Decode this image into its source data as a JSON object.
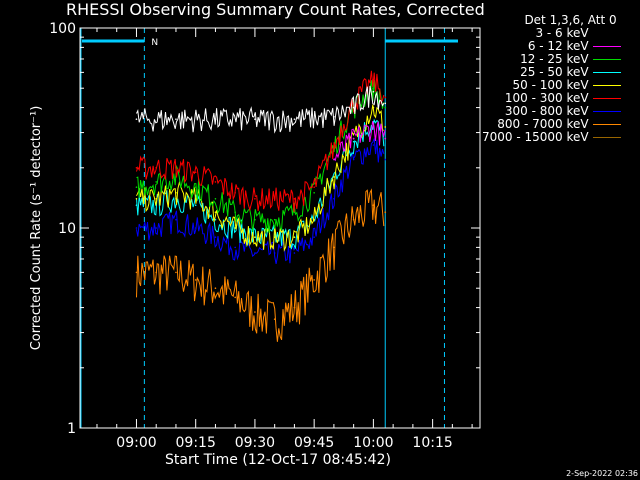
{
  "chart_data": {
    "type": "line",
    "title": "RHESSI Observing Summary Count Rates, Corrected",
    "xlabel": "Start Time (12-Oct-17 08:45:42)",
    "ylabel": "Corrected Count Rate (s⁻¹ detector⁻¹)",
    "y_scale": "log",
    "ylim": [
      1,
      100
    ],
    "ytick_labels": [
      "1",
      "10",
      "100"
    ],
    "xlim": [
      "08:45:42",
      "10:27:00"
    ],
    "xtick_labels": [
      "09:00",
      "09:15",
      "09:30",
      "09:45",
      "10:00",
      "10:15"
    ],
    "legend_header": "Det 1,3,6, Att 0",
    "legend_position": "top-right",
    "timestamp": "2-Sep-2022 02:36",
    "night_marker": "N",
    "series": [
      {
        "name": "3 - 6 keV",
        "color": "#000000",
        "x": [
          "09:00",
          "09:10",
          "09:20",
          "09:30",
          "09:40",
          "09:50",
          "09:55",
          "10:00",
          "10:03"
        ],
        "values": [
          35,
          35,
          35,
          35,
          35,
          36,
          40,
          48,
          42
        ]
      },
      {
        "name": "6 - 12 keV",
        "color": "#ff00ff",
        "x": [
          "09:50",
          "09:55",
          "10:00",
          "10:03"
        ],
        "values": [
          22,
          28,
          32,
          28
        ]
      },
      {
        "name": "12 - 25 keV",
        "color": "#00dd00",
        "x": [
          "09:00",
          "09:05",
          "09:10",
          "09:15",
          "09:20",
          "09:25",
          "09:30",
          "09:35",
          "09:40",
          "09:45",
          "09:50",
          "09:55",
          "10:00",
          "10:03"
        ],
        "values": [
          16,
          17,
          18,
          16,
          14,
          12,
          11,
          11,
          12,
          15,
          25,
          40,
          50,
          40
        ]
      },
      {
        "name": "25 - 50 keV",
        "color": "#00ffff",
        "x": [
          "09:00",
          "09:05",
          "09:10",
          "09:15",
          "09:20",
          "09:25",
          "09:30",
          "09:35",
          "09:40",
          "09:45",
          "09:50",
          "09:55",
          "10:00",
          "10:03"
        ],
        "values": [
          13,
          13,
          14,
          13,
          11,
          10,
          9,
          9,
          9,
          11,
          18,
          27,
          34,
          28
        ]
      },
      {
        "name": "50 - 100 keV",
        "color": "#ffff00",
        "x": [
          "09:00",
          "09:05",
          "09:10",
          "09:15",
          "09:20",
          "09:25",
          "09:30",
          "09:35",
          "09:40",
          "09:45",
          "09:50",
          "09:55",
          "10:00",
          "10:03"
        ],
        "values": [
          14,
          14,
          15,
          14,
          12,
          10,
          9,
          9,
          9,
          11,
          18,
          28,
          40,
          32
        ]
      },
      {
        "name": "100 - 300 keV",
        "color": "#ff0000",
        "x": [
          "09:00",
          "09:05",
          "09:10",
          "09:15",
          "09:20",
          "09:25",
          "09:30",
          "09:35",
          "09:40",
          "09:45",
          "09:50",
          "09:55",
          "10:00",
          "10:03"
        ],
        "values": [
          20,
          20,
          20,
          19,
          17,
          15,
          14,
          14,
          14,
          16,
          25,
          42,
          55,
          45
        ]
      },
      {
        "name": "300 - 800 keV",
        "color": "#0000ff",
        "x": [
          "09:00",
          "09:05",
          "09:10",
          "09:15",
          "09:20",
          "09:25",
          "09:30",
          "09:35",
          "09:40",
          "09:45",
          "09:50",
          "09:55",
          "10:00",
          "10:03"
        ],
        "values": [
          10,
          10,
          11,
          10,
          9,
          8,
          7.5,
          7.5,
          7.5,
          9,
          14,
          22,
          26,
          22
        ]
      },
      {
        "name": "800 - 7000 keV",
        "color": "#ff8800",
        "x": [
          "09:00",
          "09:05",
          "09:10",
          "09:15",
          "09:20",
          "09:25",
          "09:30",
          "09:35",
          "09:40",
          "09:45",
          "09:50",
          "09:55",
          "10:00",
          "10:03"
        ],
        "values": [
          6,
          6,
          6,
          5.5,
          5,
          4.5,
          3.8,
          3.5,
          4,
          5.5,
          8,
          11,
          13,
          12
        ]
      },
      {
        "name": "7000 - 15000 keV",
        "color": "#996600",
        "x": [],
        "values": []
      }
    ],
    "colors": {
      "background": "#000000",
      "axes": "#ffffff",
      "saa_night": "#00ccff"
    }
  }
}
